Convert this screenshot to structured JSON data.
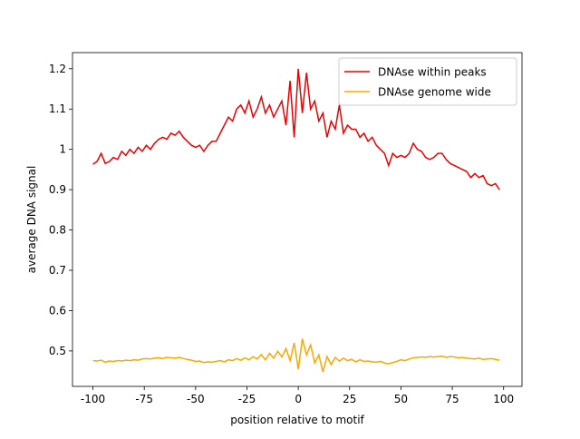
{
  "chart_data": {
    "type": "line",
    "xlabel": "position relative to motif",
    "ylabel": "average DNA signal",
    "x": [
      -100,
      -98,
      -96,
      -94,
      -92,
      -90,
      -88,
      -86,
      -84,
      -82,
      -80,
      -78,
      -76,
      -74,
      -72,
      -70,
      -68,
      -66,
      -64,
      -62,
      -60,
      -58,
      -56,
      -54,
      -52,
      -50,
      -48,
      -46,
      -44,
      -42,
      -40,
      -38,
      -36,
      -34,
      -32,
      -30,
      -28,
      -26,
      -24,
      -22,
      -20,
      -18,
      -16,
      -14,
      -12,
      -10,
      -8,
      -6,
      -4,
      -2,
      0,
      2,
      4,
      6,
      8,
      10,
      12,
      14,
      16,
      18,
      20,
      22,
      24,
      26,
      28,
      30,
      32,
      34,
      36,
      38,
      40,
      42,
      44,
      46,
      48,
      50,
      52,
      54,
      56,
      58,
      60,
      62,
      64,
      66,
      68,
      70,
      72,
      74,
      76,
      78,
      80,
      82,
      84,
      86,
      88,
      90,
      92,
      94,
      96,
      98
    ],
    "series": [
      {
        "name": "DNAse within peaks",
        "color": "#ee0000",
        "values": [
          0.963,
          0.97,
          0.99,
          0.965,
          0.97,
          0.98,
          0.975,
          0.995,
          0.985,
          1.0,
          0.99,
          1.005,
          0.995,
          1.01,
          1.0,
          1.015,
          1.025,
          1.03,
          1.025,
          1.04,
          1.035,
          1.045,
          1.03,
          1.02,
          1.01,
          1.005,
          1.01,
          0.995,
          1.01,
          1.02,
          1.02,
          1.04,
          1.06,
          1.08,
          1.07,
          1.1,
          1.11,
          1.09,
          1.12,
          1.08,
          1.1,
          1.13,
          1.09,
          1.11,
          1.08,
          1.1,
          1.12,
          1.06,
          1.17,
          1.03,
          1.2,
          1.09,
          1.19,
          1.1,
          1.12,
          1.07,
          1.09,
          1.03,
          1.07,
          1.05,
          1.11,
          1.04,
          1.06,
          1.05,
          1.05,
          1.03,
          1.04,
          1.02,
          1.03,
          1.01,
          1.0,
          0.99,
          0.96,
          0.99,
          0.98,
          0.985,
          0.98,
          0.99,
          1.015,
          1.0,
          0.995,
          0.98,
          0.975,
          0.98,
          0.99,
          0.99,
          0.975,
          0.965,
          0.96,
          0.955,
          0.95,
          0.945,
          0.93,
          0.94,
          0.93,
          0.935,
          0.915,
          0.91,
          0.915,
          0.9
        ]
      },
      {
        "name": "DNAse genome wide",
        "color": "#ffa500",
        "values": [
          0.476,
          0.475,
          0.477,
          0.472,
          0.475,
          0.474,
          0.476,
          0.475,
          0.477,
          0.476,
          0.478,
          0.477,
          0.48,
          0.481,
          0.48,
          0.482,
          0.483,
          0.481,
          0.484,
          0.483,
          0.482,
          0.484,
          0.481,
          0.479,
          0.477,
          0.474,
          0.475,
          0.471,
          0.473,
          0.472,
          0.474,
          0.476,
          0.473,
          0.478,
          0.476,
          0.481,
          0.477,
          0.483,
          0.478,
          0.486,
          0.48,
          0.491,
          0.478,
          0.494,
          0.482,
          0.499,
          0.485,
          0.506,
          0.476,
          0.52,
          0.455,
          0.53,
          0.49,
          0.515,
          0.47,
          0.49,
          0.448,
          0.486,
          0.466,
          0.484,
          0.475,
          0.482,
          0.476,
          0.479,
          0.473,
          0.478,
          0.474,
          0.475,
          0.473,
          0.472,
          0.474,
          0.47,
          0.468,
          0.471,
          0.474,
          0.478,
          0.476,
          0.48,
          0.483,
          0.484,
          0.485,
          0.484,
          0.486,
          0.485,
          0.486,
          0.487,
          0.484,
          0.486,
          0.485,
          0.483,
          0.484,
          0.482,
          0.481,
          0.48,
          0.482,
          0.479,
          0.48,
          0.481,
          0.479,
          0.477
        ]
      }
    ],
    "xlim": [
      -109.95,
      108.95
    ],
    "ylim": [
      0.412,
      1.24
    ],
    "xticks": [
      -100,
      -75,
      -50,
      -25,
      0,
      25,
      50,
      75,
      100
    ],
    "yticks": [
      0.5,
      0.6,
      0.7,
      0.8,
      0.9,
      1.0,
      1.1,
      1.2
    ],
    "legend": "upper right"
  }
}
